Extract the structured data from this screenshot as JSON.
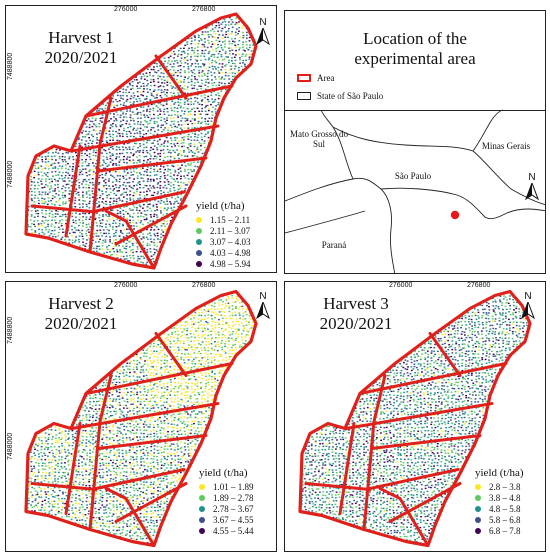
{
  "panels": {
    "harvest1": {
      "title_line1": "Harvest 1",
      "title_line2": "2020/2021",
      "x_ticks": [
        "276000",
        "276800"
      ],
      "y_ticks": [
        "7488800",
        "7488000"
      ],
      "legend_title": "yield (t/ha)",
      "legend_items": [
        "1.15 – 2.11",
        "2.11 – 3.07",
        "3.07 – 4.03",
        "4.03 – 4.98",
        "4.98 – 5.94"
      ],
      "class_weights": [
        0.08,
        0.27,
        0.3,
        0.22,
        0.13
      ]
    },
    "harvest2": {
      "title_line1": "Harvest 2",
      "title_line2": "2020/2021",
      "x_ticks": [
        "276000",
        "276800"
      ],
      "y_ticks": [
        "7488800",
        "7488000"
      ],
      "legend_title": "yield (t/ha)",
      "legend_items": [
        "1.01 – 1.89",
        "1.89 – 2.78",
        "2.78 – 3.67",
        "3.67 – 4.55",
        "4.55 – 5.44"
      ],
      "class_weights": [
        0.18,
        0.3,
        0.28,
        0.17,
        0.07
      ]
    },
    "harvest3": {
      "title_line1": "Harvest 3",
      "title_line2": "2020/2021",
      "x_ticks": [
        "276000",
        "276800"
      ],
      "legend_title": "yield (t/ha)",
      "legend_items": [
        "2.8 – 3.8",
        "3.8 – 4.8",
        "4.8 – 5.8",
        "5.8 – 6.8",
        "6.8 – 7.8"
      ],
      "class_weights": [
        0.04,
        0.25,
        0.33,
        0.28,
        0.1
      ]
    }
  },
  "yield_colors": [
    "#fde725",
    "#5ec962",
    "#21918c",
    "#3b528b",
    "#440154"
  ],
  "field_outline_color": "#e0201b",
  "location": {
    "title_line1": "Location of the",
    "title_line2": "experimental area",
    "legend_area": "Area",
    "legend_state": "State of São Paulo",
    "places": {
      "mato_grosso": "Mato Grosso do Sul",
      "minas_gerais": "Minas Gerais",
      "sao_paulo": "São Paulo",
      "parana": "Paraná"
    },
    "marker_color": "#e8191e"
  },
  "north_label": "N"
}
